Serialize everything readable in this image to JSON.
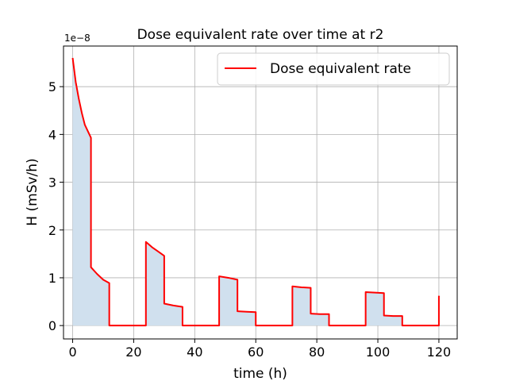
{
  "chart_data": {
    "type": "line",
    "title": "Dose equivalent rate over time at r2",
    "xlabel": "time (h)",
    "ylabel": "H (mSv/h)",
    "y_scale_label": "1e−8",
    "y_scale": 1e-08,
    "xlim": [
      -3,
      126
    ],
    "ylim": [
      -0.28,
      5.85
    ],
    "xticks": [
      0,
      20,
      40,
      60,
      80,
      100,
      120
    ],
    "xtick_labels": [
      "0",
      "20",
      "40",
      "60",
      "80",
      "100",
      "120"
    ],
    "yticks": [
      0,
      1,
      2,
      3,
      4,
      5
    ],
    "ytick_labels": [
      "0",
      "1",
      "2",
      "3",
      "4",
      "5"
    ],
    "grid": true,
    "legend_position": "top-right",
    "series": [
      {
        "name": "Dose equivalent rate",
        "color": "#ff0000",
        "fill_color": "#d0e0ee",
        "points": [
          [
            0,
            5.6
          ],
          [
            1,
            5.1
          ],
          [
            2,
            4.75
          ],
          [
            3,
            4.45
          ],
          [
            4,
            4.2
          ],
          [
            6,
            3.93
          ],
          [
            6,
            1.22
          ],
          [
            8,
            1.08
          ],
          [
            10,
            0.96
          ],
          [
            12,
            0.89
          ],
          [
            12,
            0
          ],
          [
            24,
            0
          ],
          [
            24,
            1.75
          ],
          [
            26,
            1.64
          ],
          [
            28,
            1.55
          ],
          [
            30,
            1.46
          ],
          [
            30,
            0.46
          ],
          [
            33,
            0.42
          ],
          [
            36,
            0.39
          ],
          [
            36,
            0
          ],
          [
            48,
            0
          ],
          [
            48,
            1.03
          ],
          [
            51,
            1.0
          ],
          [
            54,
            0.96
          ],
          [
            54,
            0.3
          ],
          [
            57,
            0.29
          ],
          [
            60,
            0.28
          ],
          [
            60,
            0
          ],
          [
            72,
            0
          ],
          [
            72,
            0.82
          ],
          [
            75,
            0.8
          ],
          [
            78,
            0.79
          ],
          [
            78,
            0.25
          ],
          [
            81,
            0.24
          ],
          [
            84,
            0.24
          ],
          [
            84,
            0
          ],
          [
            96,
            0
          ],
          [
            96,
            0.7
          ],
          [
            99,
            0.69
          ],
          [
            102,
            0.68
          ],
          [
            102,
            0.21
          ],
          [
            105,
            0.2
          ],
          [
            108,
            0.2
          ],
          [
            108,
            0
          ],
          [
            120,
            0
          ],
          [
            120,
            0.61
          ],
          [
            120.2,
            0.6
          ]
        ]
      }
    ]
  }
}
